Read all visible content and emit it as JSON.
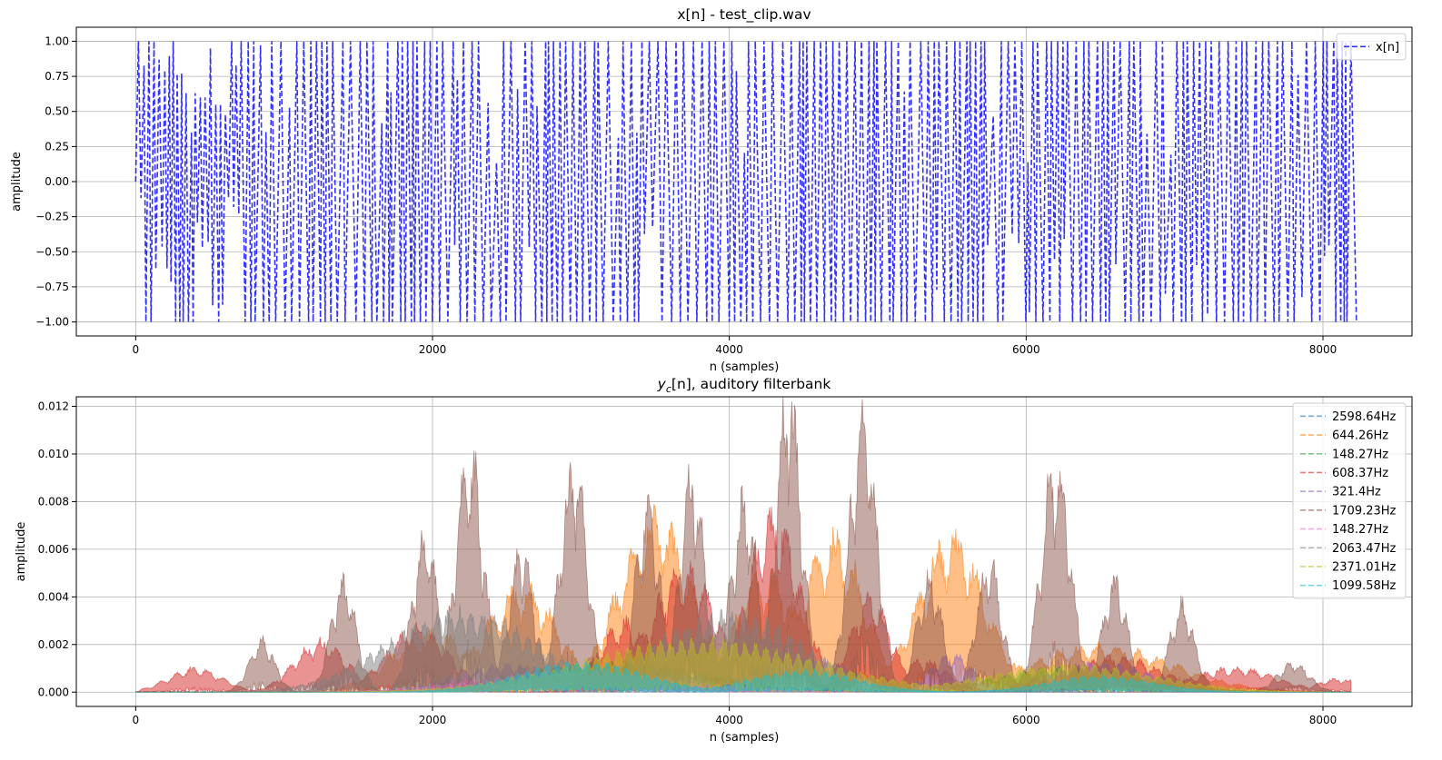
{
  "chart_data": [
    {
      "type": "line",
      "title": "x[n] - test_clip.wav",
      "xlabel": "n (samples)",
      "ylabel": "amplitude",
      "xlim": [
        -400,
        8600
      ],
      "ylim": [
        -1.1,
        1.1
      ],
      "xticks": [
        0,
        2000,
        4000,
        6000,
        8000
      ],
      "yticks": [
        -1.0,
        -0.75,
        -0.5,
        -0.25,
        0.0,
        0.25,
        0.5,
        0.75,
        1.0
      ],
      "ytick_labels": [
        "−1.00",
        "−0.75",
        "−0.50",
        "−0.25",
        "0.00",
        "0.25",
        "0.50",
        "0.75",
        "1.00"
      ],
      "grid": true,
      "legend_position": "top-right",
      "series": [
        {
          "name": "x[n]",
          "color": "#0000ff",
          "style": "dashed",
          "x_range": [
            0,
            8191
          ],
          "approx_onsets": [
            0,
            180,
            250,
            320,
            400,
            480,
            560,
            640
          ],
          "approx_onset_peaks": [
            1.0,
            0.97,
            0.77,
            0.63,
            0.6,
            0.55,
            0.62,
            0.83
          ],
          "approx_minimum": -1.0,
          "approx_maximum": 1.0
        }
      ]
    },
    {
      "type": "line",
      "title": "y_c[n], auditory filterbank",
      "title_main": "y",
      "title_sub": "c",
      "title_rest": "[n], auditory filterbank",
      "xlabel": "n (samples)",
      "ylabel": "amplitude",
      "xlim": [
        -400,
        8600
      ],
      "ylim": [
        -0.0006,
        0.0124
      ],
      "xticks": [
        0,
        2000,
        4000,
        6000,
        8000
      ],
      "yticks": [
        0.0,
        0.002,
        0.004,
        0.006,
        0.008,
        0.01,
        0.012
      ],
      "ytick_labels": [
        "0.000",
        "0.002",
        "0.004",
        "0.006",
        "0.008",
        "0.010",
        "0.012"
      ],
      "grid": true,
      "legend_position": "top-right",
      "series": [
        {
          "name": "2598.64Hz",
          "color": "#1f77b4",
          "approx_peak": 2e-05,
          "bumps": []
        },
        {
          "name": "644.26Hz",
          "color": "#ff7f0e",
          "approx_peak": 0.0068,
          "bumps": [
            [
              2000,
              0.0022,
              400
            ],
            [
              2600,
              0.0039,
              350
            ],
            [
              3500,
              0.0064,
              350
            ],
            [
              4250,
              0.0044,
              300
            ],
            [
              4700,
              0.0057,
              300
            ],
            [
              5500,
              0.0058,
              320
            ],
            [
              6500,
              0.0017,
              700
            ]
          ]
        },
        {
          "name": "148.27Hz",
          "color": "#2ca02c",
          "approx_peak": 0.0012,
          "bumps": [
            [
              3200,
              0.0011,
              900
            ],
            [
              6300,
              0.0009,
              700
            ]
          ]
        },
        {
          "name": "608.37Hz",
          "color": "#d62728",
          "approx_peak": 0.0068,
          "bumps": [
            [
              400,
              0.0009,
              250
            ],
            [
              1250,
              0.0019,
              250
            ],
            [
              1900,
              0.0024,
              300
            ],
            [
              3300,
              0.0026,
              250
            ],
            [
              3700,
              0.0047,
              300
            ],
            [
              4300,
              0.0066,
              250
            ],
            [
              4950,
              0.0035,
              200
            ],
            [
              5300,
              0.0012,
              250
            ],
            [
              6600,
              0.0013,
              450
            ],
            [
              7400,
              0.0009,
              400
            ],
            [
              8100,
              0.0005,
              200
            ]
          ]
        },
        {
          "name": "321.4Hz",
          "color": "#9467bd",
          "approx_peak": 0.0015,
          "bumps": [
            [
              2500,
              0.001,
              500
            ],
            [
              3500,
              0.0008,
              500
            ],
            [
              4500,
              0.0012,
              500
            ],
            [
              5500,
              0.0014,
              200
            ],
            [
              6500,
              0.0011,
              500
            ]
          ]
        },
        {
          "name": "1709.23Hz",
          "color": "#8c564b",
          "approx_peak": 0.0118,
          "bumps": [
            [
              850,
              0.002,
              120
            ],
            [
              1400,
              0.0042,
              120
            ],
            [
              1950,
              0.006,
              120
            ],
            [
              2250,
              0.009,
              130
            ],
            [
              2600,
              0.0054,
              120
            ],
            [
              2950,
              0.0085,
              130
            ],
            [
              3450,
              0.007,
              120
            ],
            [
              3750,
              0.0083,
              120
            ],
            [
              4100,
              0.0071,
              130
            ],
            [
              4400,
              0.0117,
              120
            ],
            [
              4900,
              0.0105,
              130
            ],
            [
              5350,
              0.0043,
              120
            ],
            [
              5750,
              0.005,
              120
            ],
            [
              6200,
              0.0088,
              140
            ],
            [
              6600,
              0.0042,
              120
            ],
            [
              7050,
              0.0033,
              120
            ],
            [
              7800,
              0.0011,
              150
            ]
          ]
        },
        {
          "name": "148.27Hz",
          "color": "#e377c2",
          "approx_peak": 0.0009,
          "bumps": [
            [
              3000,
              0.0008,
              900
            ]
          ]
        },
        {
          "name": "2063.47Hz",
          "color": "#7f7f7f",
          "approx_peak": 0.003,
          "bumps": [
            [
              2200,
              0.003,
              700
            ],
            [
              4000,
              0.0029,
              700
            ]
          ]
        },
        {
          "name": "2371.01Hz",
          "color": "#bcbd22",
          "approx_peak": 0.0019,
          "bumps": [
            [
              3800,
              0.0019,
              1100
            ],
            [
              6300,
              0.001,
              800
            ]
          ]
        },
        {
          "name": "1099.58Hz",
          "color": "#17becf",
          "approx_peak": 0.0012,
          "bumps": [
            [
              3000,
              0.0011,
              600
            ],
            [
              4500,
              0.0008,
              500
            ],
            [
              6500,
              0.0006,
              500
            ]
          ]
        }
      ]
    }
  ]
}
